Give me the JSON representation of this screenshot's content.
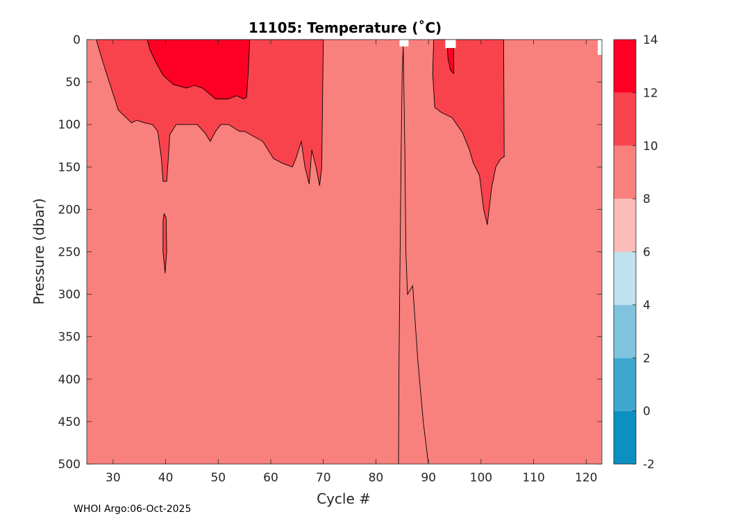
{
  "chart_data": {
    "type": "heatmap",
    "title": "11105:  Temperature (˚C)",
    "xlabel": "Cycle #",
    "ylabel": "Pressure (dbar)",
    "xlim": [
      25,
      123
    ],
    "ylim": [
      0,
      500
    ],
    "y_reversed": true,
    "x_ticks": [
      30,
      40,
      50,
      60,
      70,
      80,
      90,
      100,
      110,
      120
    ],
    "y_ticks": [
      0,
      50,
      100,
      150,
      200,
      250,
      300,
      350,
      400,
      450,
      500
    ],
    "background_band": {
      "range": [
        8,
        10
      ],
      "color": "#f8807d"
    },
    "regions": [
      {
        "name": "warm-band-10-12-left",
        "range": [
          10,
          12
        ],
        "color": "#f9434c",
        "outline": [
          [
            26.8,
            0
          ],
          [
            70,
            0
          ],
          [
            69.7,
            150
          ],
          [
            69.3,
            172
          ],
          [
            68.6,
            150
          ],
          [
            67.8,
            130
          ],
          [
            67.3,
            170
          ],
          [
            66.5,
            150
          ],
          [
            65.8,
            120
          ],
          [
            64.8,
            140
          ],
          [
            64.1,
            150
          ],
          [
            62,
            145
          ],
          [
            60.5,
            140
          ],
          [
            58.5,
            120
          ],
          [
            55,
            108
          ],
          [
            54,
            108
          ],
          [
            52,
            100
          ],
          [
            50.5,
            100
          ],
          [
            49.5,
            108
          ],
          [
            48.5,
            120
          ],
          [
            47.5,
            110
          ],
          [
            46,
            100
          ],
          [
            44,
            100
          ],
          [
            42,
            100
          ],
          [
            40.8,
            112
          ],
          [
            40.5,
            140
          ],
          [
            40.2,
            167
          ],
          [
            39.5,
            167
          ],
          [
            39.2,
            140
          ],
          [
            38.5,
            108
          ],
          [
            37.5,
            100
          ],
          [
            36,
            98
          ],
          [
            34.5,
            95
          ],
          [
            33.5,
            98
          ],
          [
            32.5,
            92
          ],
          [
            31,
            83
          ],
          [
            29.8,
            60
          ],
          [
            28.5,
            35
          ],
          [
            27.5,
            15
          ]
        ]
      },
      {
        "name": "warm-band-12-14-left",
        "range": [
          12,
          14
        ],
        "color": "#ff0025",
        "outline": [
          [
            36.5,
            0
          ],
          [
            56,
            0
          ],
          [
            55.7,
            40
          ],
          [
            55.4,
            68
          ],
          [
            54.8,
            70
          ],
          [
            53.5,
            66
          ],
          [
            52,
            70
          ],
          [
            49.5,
            70
          ],
          [
            47,
            57
          ],
          [
            45.5,
            54
          ],
          [
            44,
            57
          ],
          [
            41.5,
            53
          ],
          [
            39.5,
            42
          ],
          [
            38,
            25
          ],
          [
            37,
            12
          ]
        ]
      },
      {
        "name": "warm-band-10-12-right",
        "range": [
          10,
          12
        ],
        "color": "#f9434c",
        "outline": [
          [
            91,
            0
          ],
          [
            104.3,
            0
          ],
          [
            104.4,
            138
          ],
          [
            103.8,
            140
          ],
          [
            102.8,
            150
          ],
          [
            102,
            175
          ],
          [
            101.2,
            218
          ],
          [
            100.5,
            200
          ],
          [
            99.7,
            160
          ],
          [
            98.5,
            145
          ],
          [
            97.8,
            130
          ],
          [
            96.5,
            110
          ],
          [
            94.5,
            92
          ],
          [
            92.5,
            86
          ],
          [
            91.2,
            80
          ],
          [
            90.8,
            40
          ]
        ]
      },
      {
        "name": "warm-band-12-14-right",
        "range": [
          12,
          14
        ],
        "color": "#ff0025",
        "outline": [
          [
            93.6,
            10
          ],
          [
            94.8,
            10
          ],
          [
            94.8,
            40
          ],
          [
            94.2,
            36
          ],
          [
            93.7,
            22
          ]
        ]
      },
      {
        "name": "warm-band-10-12-patch",
        "range": [
          10,
          12
        ],
        "color": "#f9434c",
        "outline": [
          [
            39.7,
            205
          ],
          [
            40.1,
            210
          ],
          [
            40.2,
            250
          ],
          [
            39.9,
            275
          ],
          [
            39.5,
            250
          ],
          [
            39.5,
            215
          ]
        ]
      }
    ],
    "missing_data": [
      {
        "x": [
          84.5,
          86.2
        ],
        "y": [
          0,
          8
        ]
      },
      {
        "x": [
          93.2,
          95.2
        ],
        "y": [
          0,
          10
        ]
      },
      {
        "x": [
          122.2,
          123
        ],
        "y": [
          0,
          18
        ]
      }
    ],
    "colorbar": {
      "levels": [
        -2,
        0,
        2,
        4,
        6,
        8,
        10,
        12,
        14
      ],
      "colors": [
        "#0b90c1",
        "#3ea7cf",
        "#7fc3de",
        "#c0e1ed",
        "#fcbdba",
        "#f8807d",
        "#f9434c",
        "#ff0025"
      ]
    }
  },
  "footer": {
    "credit": "WHOI Argo:06-Oct-2025"
  }
}
